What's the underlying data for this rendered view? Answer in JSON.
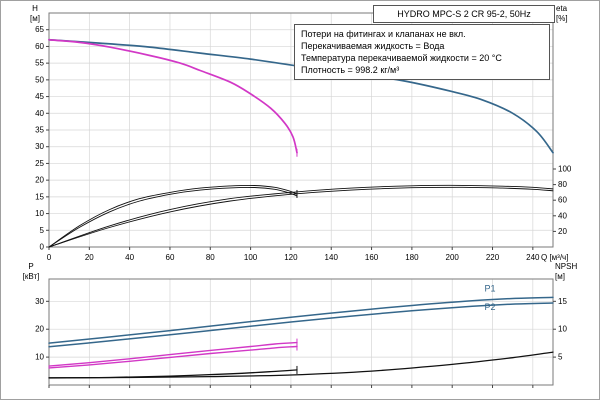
{
  "title": "HYDRO MPC-S 2 CR 95-2, 50Hz",
  "info_box": {
    "lines": [
      "Потери на фитингах и клапанах не вкл.",
      "Перекачиваемая жидкость = Вода",
      "Температура перекачиваемой жидкости = 20 °C",
      "Плотность = 998.2 кг/м³"
    ]
  },
  "axis_labels": {
    "h_name": "H",
    "h_unit": "[м]",
    "eta_name": "eta",
    "eta_unit": "[%]",
    "p_name": "P",
    "p_unit": "[кВт]",
    "npsh_name": "NPSH",
    "npsh_unit": "[м]"
  },
  "colors": {
    "curve_blue": "#35678b",
    "curve_magenta": "#d238c6",
    "curve_black": "#111111",
    "grid": "#d6d6d6",
    "frame": "#7a7a7a",
    "text": "#000000"
  },
  "chart_data": [
    {
      "type": "line",
      "title": "HYDRO MPC-S 2 CR 95-2, 50Hz",
      "xlabel": "Q [м³/ч]",
      "xlim": [
        0,
        250
      ],
      "x_ticks": [
        0,
        20,
        40,
        60,
        80,
        100,
        120,
        140,
        160,
        180,
        200,
        220,
        240
      ],
      "left_axis": {
        "label": "H [м]",
        "lim": [
          0,
          70
        ],
        "ticks": [
          0,
          5,
          10,
          15,
          20,
          25,
          30,
          35,
          40,
          45,
          50,
          55,
          60,
          65
        ]
      },
      "right_axis": {
        "label": "eta [%]",
        "lim": [
          0,
          300
        ],
        "ticks": [
          20,
          40,
          60,
          80,
          100
        ]
      },
      "grid": true,
      "series": [
        {
          "name": "head-2-pumps",
          "axis": "left",
          "color": "#35678b",
          "width": 1.7,
          "points": [
            [
              0,
              62
            ],
            [
              25,
              61
            ],
            [
              50,
              59.8
            ],
            [
              75,
              58
            ],
            [
              100,
              56.2
            ],
            [
              125,
              54
            ],
            [
              150,
              52
            ],
            [
              175,
              49.8
            ],
            [
              200,
              46.5
            ],
            [
              215,
              44
            ],
            [
              230,
              40
            ],
            [
              242,
              34.5
            ],
            [
              250,
              28.2
            ]
          ]
        },
        {
          "name": "head-1-pump",
          "axis": "left",
          "color": "#d238c6",
          "width": 1.7,
          "end_tick": true,
          "points": [
            [
              0,
              62
            ],
            [
              15,
              61.2
            ],
            [
              30,
              59.8
            ],
            [
              50,
              57.3
            ],
            [
              65,
              55
            ],
            [
              75,
              52.8
            ],
            [
              90,
              49.3
            ],
            [
              100,
              45.8
            ],
            [
              110,
              41.5
            ],
            [
              117,
              37
            ],
            [
              121,
              33
            ],
            [
              123,
              28.2
            ]
          ]
        },
        {
          "name": "eta-2-pumps-a",
          "axis": "right",
          "color": "#111111",
          "width": 0.9,
          "points": [
            [
              0,
              0
            ],
            [
              30,
              27
            ],
            [
              60,
              48
            ],
            [
              90,
              62
            ],
            [
              120,
              70
            ],
            [
              150,
              75.5
            ],
            [
              180,
              78.5
            ],
            [
              205,
              79
            ],
            [
              225,
              78
            ],
            [
              240,
              76.5
            ],
            [
              250,
              74.5
            ]
          ]
        },
        {
          "name": "eta-2-pumps-b",
          "axis": "right",
          "color": "#111111",
          "width": 0.9,
          "points": [
            [
              0,
              0
            ],
            [
              30,
              25
            ],
            [
              60,
              45
            ],
            [
              90,
              59
            ],
            [
              120,
              67.5
            ],
            [
              150,
              73
            ],
            [
              180,
              76
            ],
            [
              205,
              76.5
            ],
            [
              225,
              75.5
            ],
            [
              240,
              74
            ],
            [
              250,
              72
            ]
          ]
        },
        {
          "name": "eta-1-pump-a",
          "axis": "right",
          "color": "#111111",
          "width": 0.9,
          "end_tick": true,
          "points": [
            [
              0,
              0
            ],
            [
              15,
              27
            ],
            [
              30,
              48
            ],
            [
              45,
              62
            ],
            [
              60,
              70
            ],
            [
              75,
              75.5
            ],
            [
              90,
              78.3
            ],
            [
              102,
              78.8
            ],
            [
              112,
              76.5
            ],
            [
              119,
              72
            ],
            [
              123,
              68
            ]
          ]
        },
        {
          "name": "eta-1-pump-b",
          "axis": "right",
          "color": "#111111",
          "width": 0.9,
          "points": [
            [
              0,
              0
            ],
            [
              15,
              25
            ],
            [
              30,
              45
            ],
            [
              45,
              59
            ],
            [
              60,
              67.5
            ],
            [
              75,
              73
            ],
            [
              90,
              75.8
            ],
            [
              102,
              76.3
            ],
            [
              112,
              74
            ],
            [
              119,
              69.5
            ],
            [
              123,
              65.5
            ]
          ]
        }
      ]
    },
    {
      "type": "line",
      "title": "",
      "xlabel": "",
      "xlim": [
        0,
        250
      ],
      "x_ticks": [
        0,
        20,
        40,
        60,
        80,
        100,
        120,
        140,
        160,
        180,
        200,
        220,
        240
      ],
      "left_axis": {
        "label": "P [кВт]",
        "lim": [
          0,
          38
        ],
        "ticks": [
          10,
          20,
          30
        ]
      },
      "right_axis": {
        "label": "NPSH [м]",
        "lim": [
          0,
          19
        ],
        "ticks": [
          5,
          10,
          15
        ]
      },
      "grid": true,
      "series": [
        {
          "name": "p1-2-pumps",
          "axis": "left",
          "color": "#35678b",
          "width": 1.5,
          "label": "P1",
          "label_at": [
            216,
            33.6
          ],
          "points": [
            [
              0,
              15
            ],
            [
              30,
              17.2
            ],
            [
              60,
              19.5
            ],
            [
              90,
              21.9
            ],
            [
              120,
              24.3
            ],
            [
              150,
              26.5
            ],
            [
              180,
              28.5
            ],
            [
              210,
              30.2
            ],
            [
              230,
              31
            ],
            [
              250,
              31.4
            ]
          ]
        },
        {
          "name": "p2-2-pumps",
          "axis": "left",
          "color": "#35678b",
          "width": 1.5,
          "label": "P2",
          "label_at": [
            216,
            26.8
          ],
          "points": [
            [
              0,
              13.7
            ],
            [
              30,
              15.8
            ],
            [
              60,
              18
            ],
            [
              90,
              20.3
            ],
            [
              120,
              22.6
            ],
            [
              150,
              24.7
            ],
            [
              180,
              26.6
            ],
            [
              210,
              28.2
            ],
            [
              230,
              29
            ],
            [
              250,
              29.4
            ]
          ]
        },
        {
          "name": "p1-1-pump",
          "axis": "left",
          "color": "#d238c6",
          "width": 1.4,
          "end_tick": true,
          "points": [
            [
              0,
              6.8
            ],
            [
              20,
              8
            ],
            [
              40,
              9.4
            ],
            [
              60,
              10.9
            ],
            [
              80,
              12.4
            ],
            [
              100,
              13.8
            ],
            [
              112,
              14.7
            ],
            [
              120,
              15.1
            ],
            [
              123,
              15.2
            ]
          ]
        },
        {
          "name": "p2-1-pump",
          "axis": "left",
          "color": "#d238c6",
          "width": 1.4,
          "end_tick": true,
          "points": [
            [
              0,
              6.1
            ],
            [
              20,
              7.2
            ],
            [
              40,
              8.5
            ],
            [
              60,
              9.9
            ],
            [
              80,
              11.3
            ],
            [
              100,
              12.5
            ],
            [
              112,
              13.3
            ],
            [
              120,
              13.7
            ],
            [
              123,
              13.8
            ]
          ]
        },
        {
          "name": "npsh-2-pumps",
          "axis": "right",
          "color": "#111111",
          "width": 1.3,
          "points": [
            [
              0,
              1.3
            ],
            [
              40,
              1.35
            ],
            [
              80,
              1.5
            ],
            [
              120,
              1.8
            ],
            [
              160,
              2.5
            ],
            [
              200,
              3.7
            ],
            [
              230,
              4.9
            ],
            [
              250,
              5.9
            ]
          ]
        },
        {
          "name": "npsh-1-pump",
          "axis": "right",
          "color": "#111111",
          "width": 1.3,
          "end_tick": true,
          "points": [
            [
              0,
              1.25
            ],
            [
              30,
              1.35
            ],
            [
              60,
              1.6
            ],
            [
              90,
              2.0
            ],
            [
              110,
              2.4
            ],
            [
              123,
              2.7
            ]
          ]
        }
      ]
    }
  ]
}
